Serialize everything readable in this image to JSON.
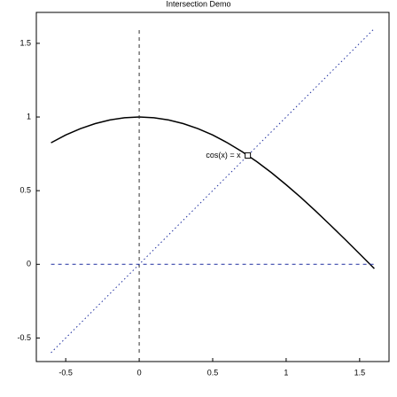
{
  "chart_data": {
    "type": "line",
    "title": "Intersection Demo",
    "xlim": [
      -0.7,
      1.7
    ],
    "ylim": [
      -0.66,
      1.71
    ],
    "xticks": [
      -0.5,
      0,
      0.5,
      1,
      1.5
    ],
    "yticks": [
      -0.5,
      0,
      0.5,
      1,
      1.5
    ],
    "series": [
      {
        "color": "#000000",
        "style": "solid",
        "x": [
          -0.6,
          -0.5,
          -0.4,
          -0.3,
          -0.2,
          -0.1,
          0,
          0.1,
          0.2,
          0.3,
          0.4,
          0.5,
          0.6,
          0.7,
          0.8,
          0.9,
          1.0,
          1.1,
          1.2,
          1.3,
          1.4,
          1.5,
          1.6
        ],
        "values": [
          0.825,
          0.878,
          0.921,
          0.955,
          0.98,
          0.995,
          1,
          0.995,
          0.98,
          0.955,
          0.921,
          0.878,
          0.825,
          0.765,
          0.697,
          0.622,
          0.54,
          0.454,
          0.362,
          0.267,
          0.17,
          0.071,
          -0.029
        ]
      },
      {
        "color": "#1f2f9f",
        "style": "dotted",
        "x": [
          -0.6,
          1.6
        ],
        "values": [
          -0.6,
          1.6
        ]
      },
      {
        "color": "#333333",
        "style": "dashed",
        "x": [
          0,
          0
        ],
        "values": [
          -0.6,
          1.6
        ]
      },
      {
        "color": "#1f2f9f",
        "style": "dashed",
        "x": [
          -0.6,
          1.6
        ],
        "values": [
          0,
          0
        ]
      }
    ],
    "annotation": {
      "text": "cos(x) = x",
      "x": 0.739,
      "y": 0.739
    }
  }
}
